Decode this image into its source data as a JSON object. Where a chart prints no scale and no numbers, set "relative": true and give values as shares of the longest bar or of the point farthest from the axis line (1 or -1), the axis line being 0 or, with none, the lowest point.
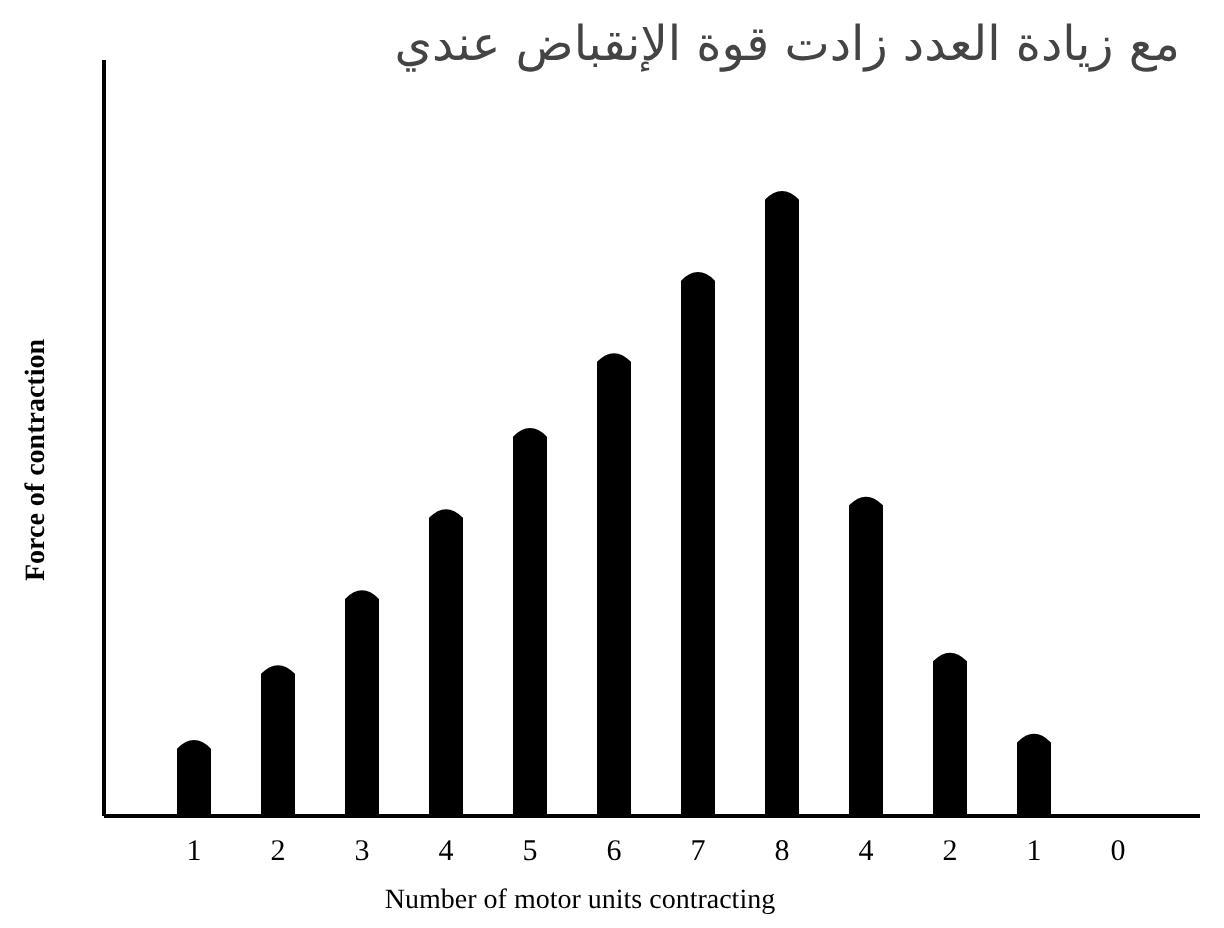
{
  "chart_data": {
    "type": "bar",
    "title": "مع زيادة العدد  زادت  قوة الإنقباض عندي",
    "xlabel": "Number of motor units contracting",
    "ylabel": "Force of contraction",
    "relative": true,
    "categories": [
      "1",
      "2",
      "3",
      "4",
      "5",
      "6",
      "7",
      "8",
      "4",
      "2",
      "1",
      "0"
    ],
    "series": [
      {
        "color": "#000000",
        "values": [
          0.12,
          0.24,
          0.36,
          0.49,
          0.62,
          0.74,
          0.87,
          1,
          0.51,
          0.26,
          0.13,
          0
        ]
      }
    ]
  }
}
